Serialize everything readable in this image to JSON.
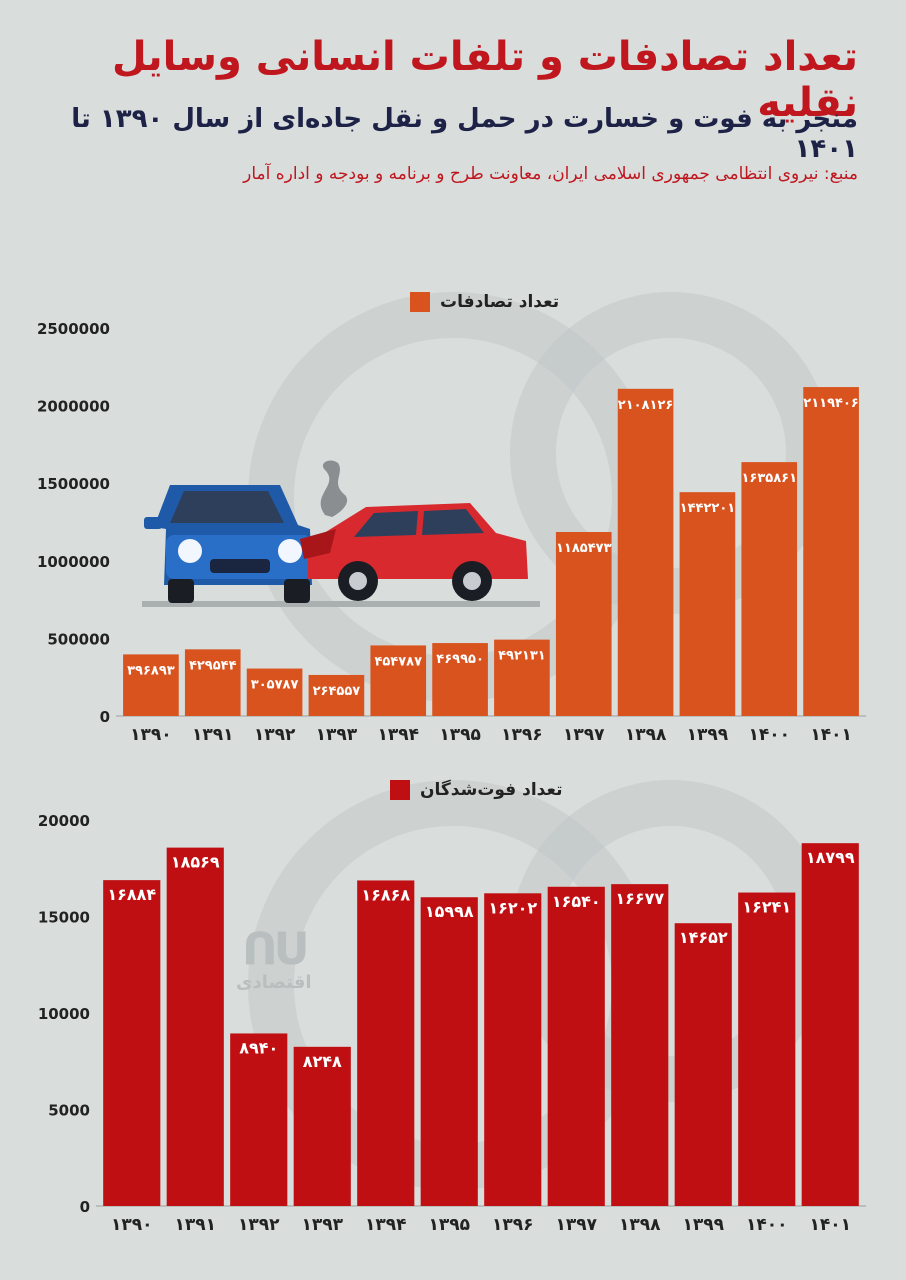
{
  "header": {
    "title": "تعداد تصادفات و تلفات انسانی وسایل نقلیه",
    "subtitle": "منجر به فوت و خسارت در حمل و نقل جاده‌ای از سال ۱۳۹۰ تا ۱۴۰۱",
    "source": "منبع: نیروی انتظامی جمهوری اسلامی ایران، معاونت طرح و برنامه و بودجه و اداره آمار"
  },
  "logo": {
    "text": "اقتصادی"
  },
  "colors": {
    "accidents": "#d9531e",
    "deaths": "#bf0f12",
    "title": "#c0161e",
    "subtitle": "#1d2246",
    "background": "#d9dedd"
  },
  "chart_data": [
    {
      "type": "bar",
      "legend": "تعداد تصادفات",
      "categories": [
        "۱۳۹۰",
        "۱۳۹۱",
        "۱۳۹۲",
        "۱۳۹۳",
        "۱۳۹۴",
        "۱۳۹۵",
        "۱۳۹۶",
        "۱۳۹۷",
        "۱۳۹۸",
        "۱۳۹۹",
        "۱۴۰۰",
        "۱۴۰۱"
      ],
      "values": [
        396893,
        429544,
        305787,
        264557,
        454787,
        469950,
        492131,
        1185473,
        2108126,
        1442201,
        1635861,
        2119406
      ],
      "value_labels": [
        "۳۹۶۸۹۳",
        "۴۲۹۵۴۴",
        "۳۰۵۷۸۷",
        "۲۶۴۵۵۷",
        "۴۵۴۷۸۷",
        "۴۶۹۹۵۰",
        "۴۹۲۱۳۱",
        "۱۱۸۵۴۷۳",
        "۲۱۰۸۱۲۶",
        "۱۴۴۲۲۰۱",
        "۱۶۳۵۸۶۱",
        "۲۱۱۹۴۰۶"
      ],
      "yticks": [
        "0",
        "500000",
        "1000000",
        "1500000",
        "2000000",
        "2500000"
      ],
      "ylim": [
        0,
        2500000
      ],
      "legend_position": "top-center"
    },
    {
      "type": "bar",
      "legend": "تعداد فوت‌شدگان",
      "categories": [
        "۱۳۹۰",
        "۱۳۹۱",
        "۱۳۹۲",
        "۱۳۹۳",
        "۱۳۹۴",
        "۱۳۹۵",
        "۱۳۹۶",
        "۱۳۹۷",
        "۱۳۹۸",
        "۱۳۹۹",
        "۱۴۰۰",
        "۱۴۰۱"
      ],
      "values": [
        16884,
        18569,
        8940,
        8248,
        16868,
        15998,
        16202,
        16540,
        16677,
        14652,
        16241,
        18799
      ],
      "value_labels": [
        "۱۶۸۸۴",
        "۱۸۵۶۹",
        "۸۹۴۰",
        "۸۲۴۸",
        "۱۶۸۶۸",
        "۱۵۹۹۸",
        "۱۶۲۰۲",
        "۱۶۵۴۰",
        "۱۶۶۷۷",
        "۱۴۶۵۲",
        "۱۶۲۴۱",
        "۱۸۷۹۹"
      ],
      "yticks": [
        "0",
        "5000",
        "10000",
        "15000",
        "20000"
      ],
      "ylim": [
        0,
        20000
      ],
      "legend_position": "top-center"
    }
  ]
}
